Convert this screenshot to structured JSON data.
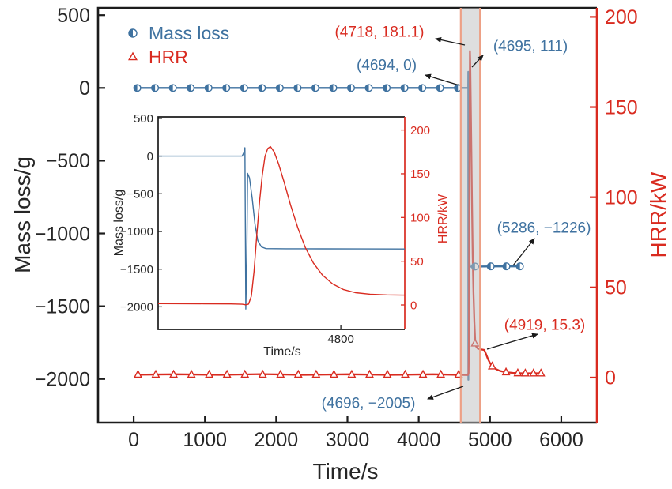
{
  "figure": {
    "colors": {
      "blue": "#3f72a0",
      "red": "#d92b20",
      "black": "#1c1c1c",
      "band_fill": "rgba(190,190,190,0.5)",
      "band_edge": "#eda085",
      "arrow": "#1a1a1a"
    }
  },
  "chart_data": {
    "type": "line",
    "title": "",
    "xlabel": "Time/s",
    "ylabel_left": "Mass loss/g",
    "ylabel_right": "HRR/kW",
    "xlim": [
      -500,
      6500
    ],
    "ylim_left": [
      -2300,
      550
    ],
    "ylim_right": [
      -25,
      205
    ],
    "grid": false,
    "legend_position": "upper-left",
    "x_ticks": {
      "values": [
        0,
        1000,
        2000,
        3000,
        4000,
        5000,
        6000
      ],
      "labels": [
        "0",
        "1000",
        "2000",
        "3000",
        "4000",
        "5000",
        "6000"
      ]
    },
    "yl_ticks": {
      "values": [
        500,
        0,
        -500,
        -1000,
        -1500,
        -2000
      ],
      "labels": [
        "500",
        "0",
        "−500",
        "−1000",
        "−1500",
        "−2000"
      ]
    },
    "yr_ticks": {
      "values": [
        200,
        150,
        100,
        50,
        0
      ],
      "labels": [
        "200",
        "150",
        "100",
        "50",
        "0"
      ]
    },
    "highlight_band": {
      "x0": 4590,
      "x1": 4860
    },
    "legend": {
      "items": [
        {
          "label": "Mass loss",
          "marker": "half-circle",
          "color": "#3f72a0"
        },
        {
          "label": "HRR",
          "marker": "open-triangle",
          "color": "#d92b20"
        }
      ]
    },
    "series": [
      {
        "name": "Mass loss",
        "axis": "left",
        "color": "#3f72a0",
        "marker": "half-circle",
        "points": [
          [
            30,
            0
          ],
          [
            4694,
            0
          ],
          [
            4695,
            111
          ],
          [
            4696,
            -2005
          ],
          [
            4698,
            -230
          ],
          [
            4701,
            -480
          ],
          [
            4704,
            -820
          ],
          [
            4708,
            -1090
          ],
          [
            4712,
            -1200
          ],
          [
            4718,
            -1228
          ],
          [
            4760,
            -1229
          ],
          [
            4900,
            -1227
          ],
          [
            5100,
            -1226
          ],
          [
            5430,
            -1226
          ]
        ],
        "marker_points": [
          [
            50,
            0
          ],
          [
            300,
            0
          ],
          [
            550,
            0
          ],
          [
            800,
            0
          ],
          [
            1050,
            0
          ],
          [
            1300,
            0
          ],
          [
            1550,
            0
          ],
          [
            1800,
            0
          ],
          [
            2050,
            0
          ],
          [
            2300,
            0
          ],
          [
            2550,
            0
          ],
          [
            2800,
            0
          ],
          [
            3050,
            0
          ],
          [
            3300,
            0
          ],
          [
            3550,
            0
          ],
          [
            3800,
            0
          ],
          [
            4050,
            0
          ],
          [
            4300,
            0
          ],
          [
            4550,
            0
          ],
          [
            4790,
            -1227
          ],
          [
            5010,
            -1226
          ],
          [
            5230,
            -1226
          ],
          [
            5420,
            -1226
          ]
        ]
      },
      {
        "name": "HRR",
        "axis": "right",
        "color": "#d92b20",
        "marker": "open-triangle",
        "points": [
          [
            30,
            1.6
          ],
          [
            600,
            1.8
          ],
          [
            1200,
            1.5
          ],
          [
            1800,
            1.9
          ],
          [
            2400,
            1.5
          ],
          [
            3000,
            1.8
          ],
          [
            3600,
            1.5
          ],
          [
            4200,
            1.8
          ],
          [
            4690,
            1.4
          ],
          [
            4700,
            2.5
          ],
          [
            4705,
            20
          ],
          [
            4710,
            85
          ],
          [
            4715,
            150
          ],
          [
            4718,
            181.1
          ],
          [
            4723,
            174
          ],
          [
            4730,
            154
          ],
          [
            4738,
            126
          ],
          [
            4747,
            97
          ],
          [
            4757,
            68
          ],
          [
            4768,
            47
          ],
          [
            4780,
            31
          ],
          [
            4792,
            21
          ],
          [
            4806,
            17.2
          ],
          [
            4830,
            16
          ],
          [
            4870,
            15.6
          ],
          [
            4919,
            15.3
          ],
          [
            4942,
            13.2
          ],
          [
            4968,
            10.6
          ],
          [
            4998,
            8.2
          ],
          [
            5035,
            6.2
          ],
          [
            5080,
            4.8
          ],
          [
            5140,
            3.7
          ],
          [
            5220,
            3
          ],
          [
            5320,
            2.6
          ],
          [
            5450,
            2.4
          ],
          [
            5600,
            2.4
          ],
          [
            5720,
            2.4
          ]
        ],
        "marker_points": [
          [
            60,
            1.7
          ],
          [
            310,
            1.7
          ],
          [
            560,
            1.7
          ],
          [
            810,
            1.7
          ],
          [
            1060,
            1.7
          ],
          [
            1310,
            1.7
          ],
          [
            1560,
            1.7
          ],
          [
            1810,
            1.7
          ],
          [
            2060,
            1.7
          ],
          [
            2310,
            1.7
          ],
          [
            2560,
            1.7
          ],
          [
            2810,
            1.7
          ],
          [
            3060,
            1.7
          ],
          [
            3310,
            1.7
          ],
          [
            3560,
            1.7
          ],
          [
            3810,
            1.7
          ],
          [
            4060,
            1.7
          ],
          [
            4310,
            1.7
          ],
          [
            4560,
            1.7
          ],
          [
            4790,
            19
          ],
          [
            5030,
            6.3
          ],
          [
            5225,
            3
          ],
          [
            5390,
            2.5
          ],
          [
            5495,
            2.4
          ],
          [
            5610,
            2.4
          ],
          [
            5715,
            2.4
          ]
        ]
      }
    ],
    "annotations": [
      {
        "text": "(4718, 181.1)",
        "color": "#d92b20",
        "label_x": 480,
        "label_y": 40,
        "arrow": [
          588,
          57,
          551,
          49
        ]
      },
      {
        "text": "(4695, 111)",
        "color": "#3f72a0",
        "label_x": 671,
        "label_y": 58,
        "arrow": [
          597,
          85,
          611,
          70
        ]
      },
      {
        "text": "(4694, 0)",
        "color": "#3f72a0",
        "label_x": 489,
        "label_y": 82,
        "arrow": [
          581,
          108,
          538,
          95
        ]
      },
      {
        "text": "(5286, −1226)",
        "color": "#3f72a0",
        "label_x": 688,
        "label_y": 288,
        "arrow": [
          649,
          336,
          676,
          302
        ]
      },
      {
        "text": "(4919, 15.3)",
        "color": "#d92b20",
        "label_x": 689,
        "label_y": 411,
        "arrow": [
          616,
          442,
          680,
          423
        ]
      },
      {
        "text": "(4696, −2005)",
        "color": "#3f72a0",
        "label_x": 466,
        "label_y": 510,
        "arrow": [
          586,
          489,
          541,
          505
        ]
      }
    ],
    "inset": {
      "xlabel": "Time/s",
      "ylabel_left": "Mass loss/g",
      "ylabel_right": "HRR/kW",
      "xlim": [
        4600,
        4870
      ],
      "ylim_left": [
        -2300,
        520
      ],
      "ylim_right": [
        -28,
        215
      ],
      "x_ticks": {
        "values": [
          4800
        ],
        "labels": [
          "4800"
        ]
      },
      "yl_ticks": {
        "values": [
          500,
          0,
          -500,
          -1000,
          -1500,
          -2000
        ],
        "labels": [
          "500",
          "0",
          "−500",
          "−1000",
          "−1500",
          "−2000"
        ]
      },
      "yr_ticks": {
        "values": [
          200,
          150,
          100,
          50,
          0
        ],
        "labels": [
          "200",
          "150",
          "100",
          "50",
          "0"
        ]
      },
      "series": [
        {
          "name": "Mass loss",
          "axis": "left",
          "color": "#3f72a0",
          "points": [
            [
              4600,
              0
            ],
            [
              4692,
              0
            ],
            [
              4694,
              50
            ],
            [
              4695,
              111
            ],
            [
              4696,
              -2030
            ],
            [
              4697,
              -1400
            ],
            [
              4698,
              -230
            ],
            [
              4700,
              -290
            ],
            [
              4703,
              -560
            ],
            [
              4706,
              -900
            ],
            [
              4709,
              -1120
            ],
            [
              4713,
              -1205
            ],
            [
              4718,
              -1228
            ],
            [
              4740,
              -1230
            ],
            [
              4780,
              -1231
            ],
            [
              4820,
              -1232
            ],
            [
              4870,
              -1233
            ]
          ]
        },
        {
          "name": "HRR",
          "axis": "right",
          "color": "#d92b20",
          "points": [
            [
              4600,
              1.5
            ],
            [
              4650,
              1.4
            ],
            [
              4680,
              1.2
            ],
            [
              4692,
              0.8
            ],
            [
              4696,
              0.2
            ],
            [
              4699,
              1
            ],
            [
              4702,
              10
            ],
            [
              4705,
              38
            ],
            [
              4708,
              80
            ],
            [
              4711,
              118
            ],
            [
              4714,
              148
            ],
            [
              4717,
              170
            ],
            [
              4720,
              179
            ],
            [
              4723,
              181
            ],
            [
              4727,
              175
            ],
            [
              4732,
              161
            ],
            [
              4738,
              140
            ],
            [
              4745,
              114
            ],
            [
              4753,
              88
            ],
            [
              4761,
              66
            ],
            [
              4770,
              48
            ],
            [
              4780,
              34
            ],
            [
              4791,
              24
            ],
            [
              4803,
              17.5
            ],
            [
              4816,
              14
            ],
            [
              4832,
              12.3
            ],
            [
              4850,
              11.5
            ],
            [
              4870,
              11.2
            ]
          ]
        }
      ]
    }
  }
}
